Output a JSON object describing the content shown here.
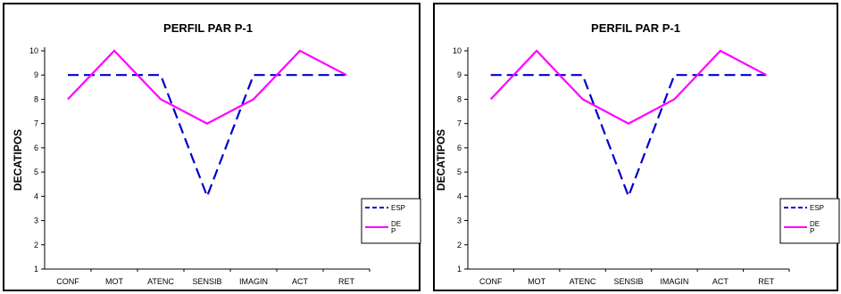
{
  "chart_data": [
    {
      "type": "line",
      "title": "PERFIL PAR P-1",
      "xlabel": "",
      "ylabel": "DECATIPOS",
      "categories": [
        "CONF",
        "MOT",
        "ATENC",
        "SENSIB",
        "IMAGIN",
        "ACT",
        "RET"
      ],
      "ylim": [
        1,
        10
      ],
      "yticks": [
        "1",
        "2",
        "3",
        "4",
        "5",
        "6",
        "7",
        "8",
        "9",
        "10"
      ],
      "grid": false,
      "legend_position": "right",
      "series": [
        {
          "name": "ESP",
          "values": [
            9,
            9,
            9,
            4,
            9,
            9,
            9
          ],
          "color": "#0000cc",
          "style": "dashed"
        },
        {
          "name": "DE P",
          "values": [
            8,
            10,
            8,
            7,
            8,
            10,
            9
          ],
          "color": "#ff00ff",
          "style": "solid"
        }
      ]
    },
    {
      "type": "line",
      "title": "PERFIL PAR P-1",
      "xlabel": "",
      "ylabel": "DECATIPOS",
      "categories": [
        "CONF",
        "MOT",
        "ATENC",
        "SENSIB",
        "IMAGIN",
        "ACT",
        "RET"
      ],
      "ylim": [
        1,
        10
      ],
      "yticks": [
        "1",
        "2",
        "3",
        "4",
        "5",
        "6",
        "7",
        "8",
        "9",
        "10"
      ],
      "grid": false,
      "legend_position": "right",
      "series": [
        {
          "name": "ESP",
          "values": [
            9,
            9,
            9,
            4,
            9,
            9,
            9
          ],
          "color": "#0000cc",
          "style": "dashed"
        },
        {
          "name": "DE P",
          "values": [
            8,
            10,
            8,
            7,
            8,
            10,
            9
          ],
          "color": "#ff00ff",
          "style": "solid"
        }
      ]
    }
  ]
}
